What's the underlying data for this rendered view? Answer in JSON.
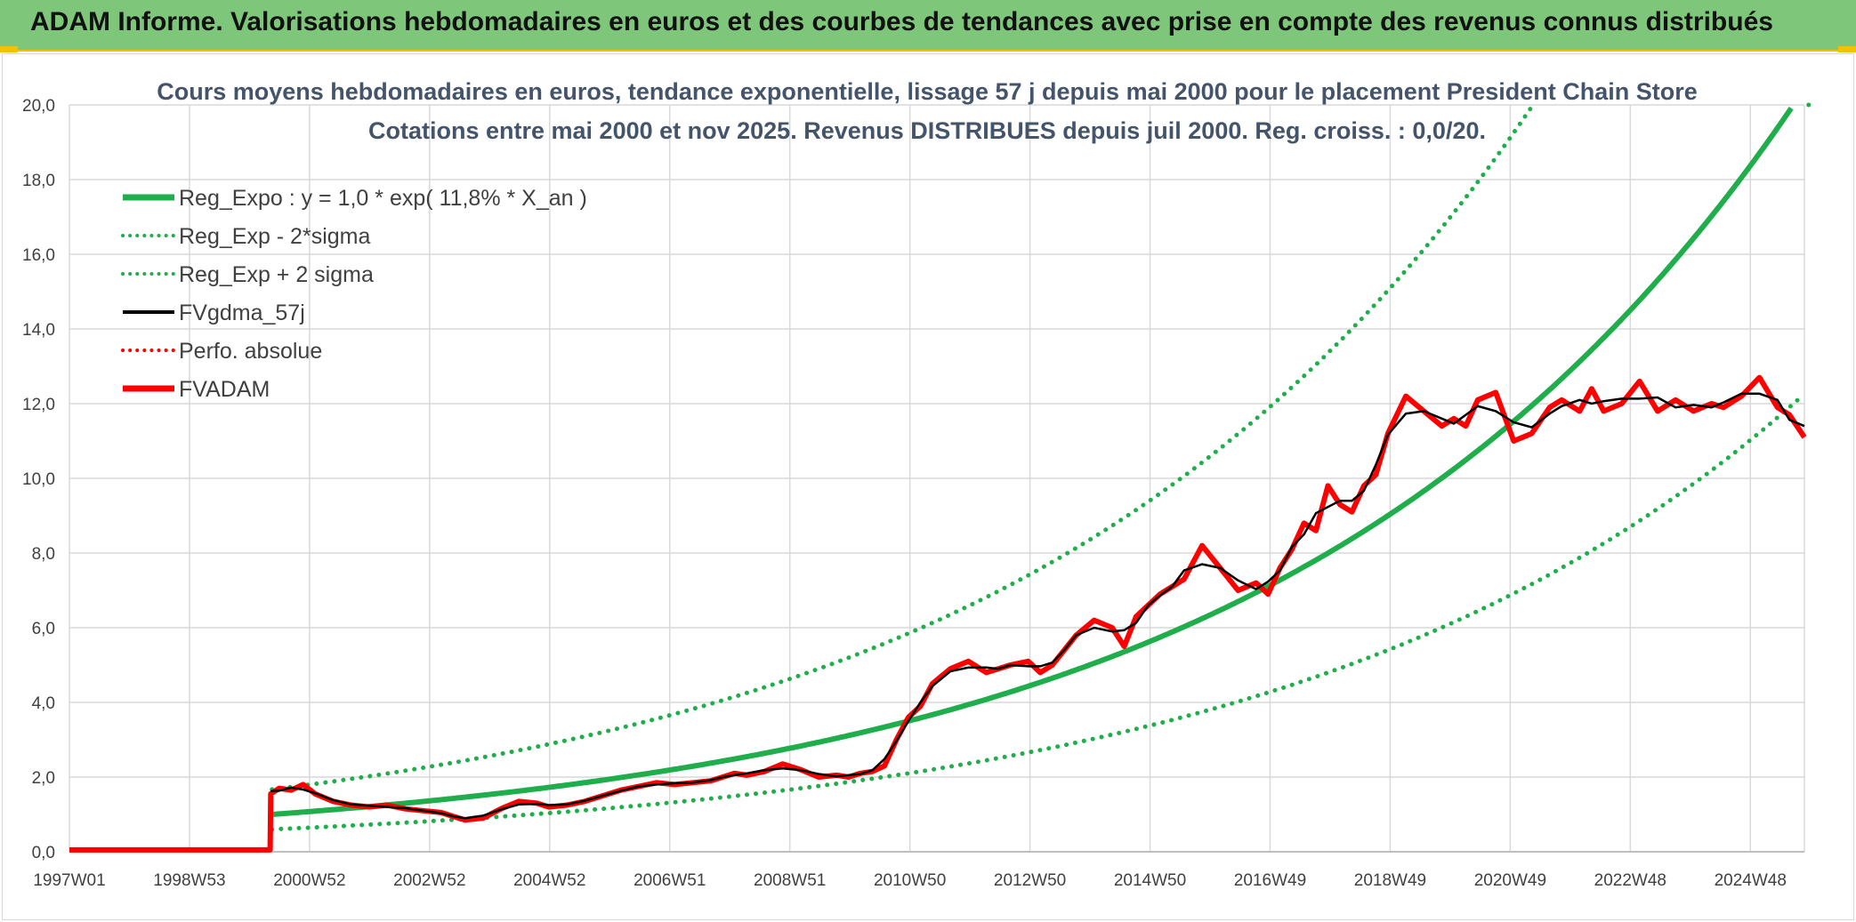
{
  "banner": {
    "title": "ADAM Informe. Valorisations hebdomadaires en euros et des courbes de tendances avec prise en compte des revenus connus distribués"
  },
  "chart_data": {
    "type": "line",
    "title": "Cours moyens hebdomadaires en euros, tendance exponentielle, lissage 57 j depuis mai 2000 pour le placement President Chain Store",
    "subtitle": "Cotations entre mai 2000 et nov 2025. Revenus DISTRIBUES depuis juil 2000. Reg. croiss. : 0,0/20.",
    "xlabel": "",
    "ylabel": "",
    "x_tick_labels": [
      "1997W01",
      "1998W53",
      "2000W52",
      "2002W52",
      "2004W52",
      "2006W51",
      "2008W51",
      "2010W50",
      "2012W50",
      "2014W50",
      "2016W49",
      "2018W49",
      "2020W49",
      "2022W48",
      "2024W48"
    ],
    "xlim": [
      1997.0,
      2025.95
    ],
    "ylim": [
      0,
      20
    ],
    "y_ticks": [
      "0,0",
      "2,0",
      "4,0",
      "6,0",
      "8,0",
      "10,0",
      "12,0",
      "14,0",
      "16,0",
      "18,0",
      "20,0"
    ],
    "grid": true,
    "legend_position": "top-left",
    "regression": {
      "label": "Reg_Expo : y = 1,0 * exp( 11,8% *  X_an )",
      "start_year": 2000.38,
      "start_value": 1.0,
      "growth_rate": 0.118,
      "lower_factor": 0.6,
      "upper_factor": 1.67
    },
    "series": [
      {
        "name": "Reg_Expo : y = 1,0 * exp( 11,8% *  X_an )",
        "color": "#1fae4b",
        "style": "solid-thick"
      },
      {
        "name": "Reg_Exp - 2*sigma",
        "color": "#1fae4b",
        "style": "dotted"
      },
      {
        "name": "Reg_Exp + 2 sigma",
        "color": "#1fae4b",
        "style": "dotted"
      },
      {
        "name": "FVgdma_57j",
        "color": "#000000",
        "style": "solid"
      },
      {
        "name": "Perfo. absolue",
        "color": "#ff0000",
        "style": "dotted"
      },
      {
        "name": "FVADAM",
        "color": "#ff0000",
        "style": "solid-thick",
        "x": [
          1997.0,
          2000.35,
          2000.36,
          2000.5,
          2000.7,
          2000.9,
          2001.1,
          2001.4,
          2001.7,
          2002.0,
          2002.3,
          2002.6,
          2002.9,
          2003.2,
          2003.4,
          2003.6,
          2003.9,
          2004.2,
          2004.5,
          2004.8,
          2005.0,
          2005.3,
          2005.6,
          2005.9,
          2006.2,
          2006.5,
          2006.8,
          2007.1,
          2007.4,
          2007.7,
          2007.9,
          2008.1,
          2008.3,
          2008.6,
          2008.9,
          2009.2,
          2009.5,
          2009.8,
          2010.0,
          2010.2,
          2010.4,
          2010.6,
          2010.8,
          2011.0,
          2011.2,
          2011.4,
          2011.7,
          2012.0,
          2012.3,
          2012.5,
          2012.7,
          2013.0,
          2013.2,
          2013.4,
          2013.6,
          2013.8,
          2014.1,
          2014.4,
          2014.6,
          2014.8,
          2015.0,
          2015.2,
          2015.4,
          2015.6,
          2015.9,
          2016.2,
          2016.5,
          2016.8,
          2017.0,
          2017.2,
          2017.4,
          2017.6,
          2017.8,
          2018.0,
          2018.2,
          2018.4,
          2018.6,
          2018.8,
          2019.0,
          2019.3,
          2019.6,
          2019.9,
          2020.1,
          2020.3,
          2020.5,
          2020.8,
          2021.1,
          2021.4,
          2021.7,
          2021.9,
          2022.2,
          2022.4,
          2022.6,
          2022.9,
          2023.2,
          2023.5,
          2023.8,
          2024.1,
          2024.4,
          2024.6,
          2024.9,
          2025.2,
          2025.5,
          2025.7,
          2025.95
        ],
        "values": [
          0.05,
          0.05,
          1.55,
          1.7,
          1.65,
          1.8,
          1.55,
          1.35,
          1.25,
          1.2,
          1.25,
          1.15,
          1.1,
          1.05,
          0.95,
          0.85,
          0.9,
          1.15,
          1.35,
          1.3,
          1.2,
          1.25,
          1.35,
          1.5,
          1.65,
          1.75,
          1.85,
          1.8,
          1.85,
          1.9,
          2.0,
          2.1,
          2.05,
          2.15,
          2.35,
          2.2,
          2.0,
          2.05,
          2.0,
          2.1,
          2.15,
          2.3,
          3.0,
          3.6,
          3.9,
          4.5,
          4.9,
          5.1,
          4.8,
          4.9,
          5.0,
          5.1,
          4.8,
          5.0,
          5.4,
          5.8,
          6.2,
          6.0,
          5.5,
          6.3,
          6.6,
          6.9,
          7.1,
          7.3,
          8.2,
          7.6,
          7.0,
          7.2,
          6.9,
          7.6,
          8.1,
          8.8,
          8.6,
          9.8,
          9.3,
          9.1,
          9.8,
          10.1,
          11.2,
          12.2,
          11.8,
          11.4,
          11.6,
          11.4,
          12.1,
          12.3,
          11.0,
          11.2,
          11.9,
          12.1,
          11.8,
          12.4,
          11.8,
          12.0,
          12.6,
          11.8,
          12.1,
          11.8,
          12.0,
          11.9,
          12.2,
          12.7,
          11.9,
          11.7,
          11.1
        ]
      }
    ]
  }
}
